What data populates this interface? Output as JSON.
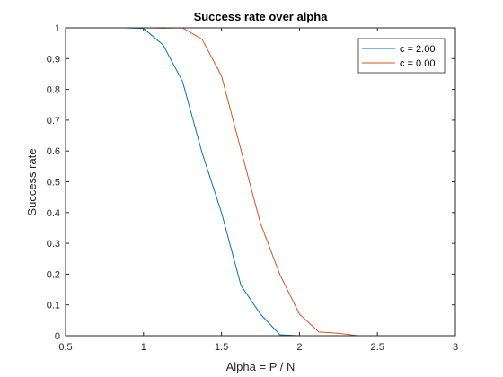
{
  "chart_data": {
    "type": "line",
    "title": "Success rate over alpha",
    "xlabel": "Alpha = P / N",
    "ylabel": "Success rate",
    "xlim": [
      0.5,
      3
    ],
    "ylim": [
      0,
      1
    ],
    "xticks": [
      "0.5",
      "1",
      "1.5",
      "2",
      "2.5",
      "3"
    ],
    "yticks": [
      "0",
      "0.1",
      "0.2",
      "0.3",
      "0.4",
      "0.5",
      "0.6",
      "0.7",
      "0.8",
      "0.9",
      "1"
    ],
    "grid": false,
    "legend_position": "top-right",
    "series": [
      {
        "name": "c = 2.00",
        "color": "#0072BD",
        "x": [
          0.75,
          0.875,
          1.0,
          1.125,
          1.25,
          1.375,
          1.5,
          1.625,
          1.75,
          1.875,
          2.0,
          2.125,
          2.25,
          2.375,
          2.5,
          2.625,
          2.75,
          2.875,
          3.0
        ],
        "y": [
          1.0,
          1.0,
          0.998,
          0.945,
          0.826,
          0.595,
          0.4,
          0.163,
          0.07,
          0.003,
          0.0,
          0.0,
          0.0,
          0.0,
          0.0,
          0.0,
          0.0,
          0.0,
          0.0
        ]
      },
      {
        "name": "c = 0.00",
        "color": "#D95319",
        "x": [
          0.75,
          0.875,
          1.0,
          1.125,
          1.25,
          1.375,
          1.5,
          1.625,
          1.75,
          1.875,
          2.0,
          2.125,
          2.25,
          2.375,
          2.5,
          2.625,
          2.75,
          2.875,
          3.0
        ],
        "y": [
          1.0,
          1.0,
          1.0,
          0.999,
          1.0,
          0.963,
          0.844,
          0.603,
          0.365,
          0.198,
          0.07,
          0.012,
          0.008,
          0.0,
          0.0,
          0.0,
          0.0,
          0.0,
          0.0
        ]
      }
    ]
  }
}
